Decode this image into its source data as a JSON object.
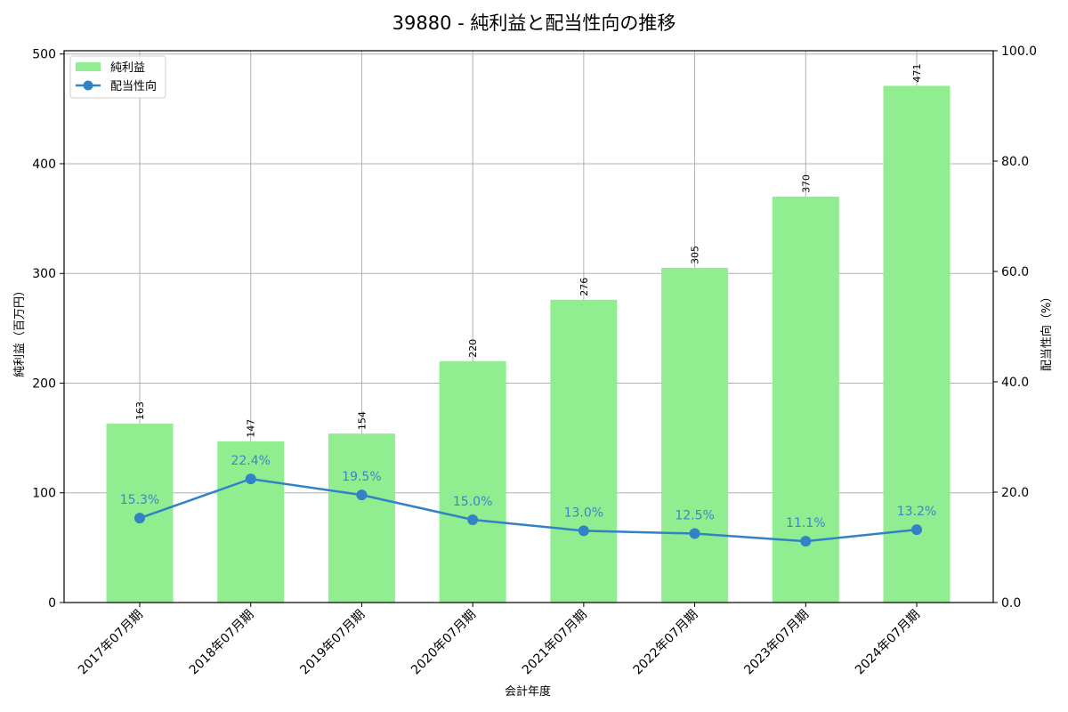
{
  "chart_data": {
    "type": "bar+line",
    "title": "39880 - 純利益と配当性向の推移",
    "xlabel": "会計年度",
    "ylabel_left": "純利益（百万円）",
    "ylabel_right": "配当性向（%）",
    "categories": [
      "2017年07月期",
      "2018年07月期",
      "2019年07月期",
      "2020年07月期",
      "2021年07月期",
      "2022年07月期",
      "2023年07月期",
      "2024年07月期"
    ],
    "series": [
      {
        "name": "純利益",
        "type": "bar",
        "axis": "left",
        "color": "#90ee90",
        "values": [
          163,
          147,
          154,
          220,
          276,
          305,
          370,
          471
        ],
        "labels": [
          "163",
          "147",
          "154",
          "220",
          "276",
          "305",
          "370",
          "471"
        ]
      },
      {
        "name": "配当性向",
        "type": "line",
        "axis": "right",
        "color": "#3182c6",
        "values": [
          15.3,
          22.4,
          19.5,
          15.0,
          13.0,
          12.5,
          11.1,
          13.2
        ],
        "labels": [
          "15.3%",
          "22.4%",
          "19.5%",
          "15.0%",
          "13.0%",
          "12.5%",
          "11.1%",
          "13.2%"
        ]
      }
    ],
    "ylim_left": [
      0,
      503
    ],
    "yticks_left": [
      "0",
      "100",
      "200",
      "300",
      "400",
      "500"
    ],
    "ylim_right": [
      0,
      100
    ],
    "yticks_right": [
      "0.0",
      "20.0",
      "40.0",
      "60.0",
      "80.0",
      "100.0"
    ],
    "grid": true,
    "legend_position": "upper left",
    "legend": [
      "純利益",
      "配当性向"
    ]
  }
}
